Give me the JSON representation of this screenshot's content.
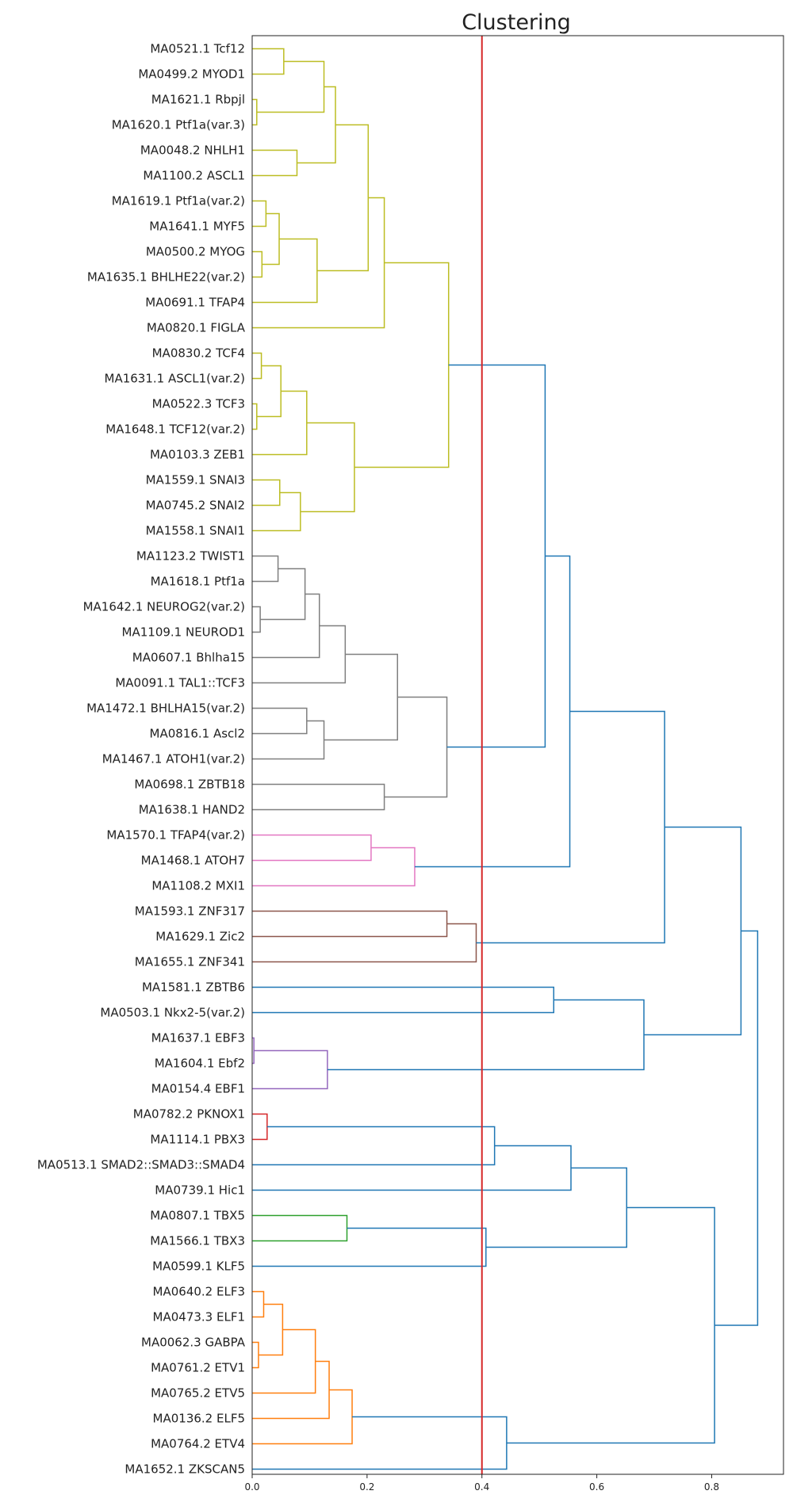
{
  "chart_data": {
    "type": "dendrogram",
    "title": "Clustering",
    "orientation": "left",
    "xlim": [
      0,
      0.925
    ],
    "xticks": [
      0.0,
      0.2,
      0.4,
      0.6,
      0.8
    ],
    "xtick_labels": [
      "0.0",
      "0.2",
      "0.4",
      "0.6",
      "0.8"
    ],
    "threshold": 0.4,
    "threshold_color": "#d62728",
    "leaves": [
      "MA0521.1 Tcf12",
      "MA0499.2 MYOD1",
      "MA1621.1 Rbpjl",
      "MA1620.1 Ptf1a(var.3)",
      "MA0048.2 NHLH1",
      "MA1100.2 ASCL1",
      "MA1619.1 Ptf1a(var.2)",
      "MA1641.1 MYF5",
      "MA0500.2 MYOG",
      "MA1635.1 BHLHE22(var.2)",
      "MA0691.1 TFAP4",
      "MA0820.1 FIGLA",
      "MA0830.2 TCF4",
      "MA1631.1 ASCL1(var.2)",
      "MA0522.3 TCF3",
      "MA1648.1 TCF12(var.2)",
      "MA0103.3 ZEB1",
      "MA1559.1 SNAI3",
      "MA0745.2 SNAI2",
      "MA1558.1 SNAI1",
      "MA1123.2 TWIST1",
      "MA1618.1 Ptf1a",
      "MA1642.1 NEUROG2(var.2)",
      "MA1109.1 NEUROD1",
      "MA0607.1 Bhlha15",
      "MA0091.1 TAL1::TCF3",
      "MA1472.1 BHLHA15(var.2)",
      "MA0816.1 Ascl2",
      "MA1467.1 ATOH1(var.2)",
      "MA0698.1 ZBTB18",
      "MA1638.1 HAND2",
      "MA1570.1 TFAP4(var.2)",
      "MA1468.1 ATOH7",
      "MA1108.2 MXI1",
      "MA1593.1 ZNF317",
      "MA1629.1 Zic2",
      "MA1655.1 ZNF341",
      "MA1581.1 ZBTB6",
      "MA0503.1 Nkx2-5(var.2)",
      "MA1637.1 EBF3",
      "MA1604.1 Ebf2",
      "MA0154.4 EBF1",
      "MA0782.2 PKNOX1",
      "MA1114.1 PBX3",
      "MA0513.1 SMAD2::SMAD3::SMAD4",
      "MA0739.1 Hic1",
      "MA0807.1 TBX5",
      "MA1566.1 TBX3",
      "MA0599.1 KLF5",
      "MA0640.2 ELF3",
      "MA0473.3 ELF1",
      "MA0062.3 GABPA",
      "MA0761.2 ETV1",
      "MA0765.2 ETV5",
      "MA0136.2 ELF5",
      "MA0764.2 ETV4",
      "MA1652.1 ZKSCAN5"
    ],
    "merges": [
      {
        "id": "n1",
        "a": "MA0521.1 Tcf12",
        "b": "MA0499.2 MYOD1",
        "h": 0.055,
        "color": "#bcbd22"
      },
      {
        "id": "n2",
        "a": "MA1621.1 Rbpjl",
        "b": "MA1620.1 Ptf1a(var.3)",
        "h": 0.008,
        "color": "#bcbd22"
      },
      {
        "id": "n3",
        "a": "n1",
        "b": "n2",
        "h": 0.125,
        "color": "#bcbd22"
      },
      {
        "id": "n4",
        "a": "MA0048.2 NHLH1",
        "b": "MA1100.2 ASCL1",
        "h": 0.078,
        "color": "#bcbd22"
      },
      {
        "id": "n5",
        "a": "n3",
        "b": "n4",
        "h": 0.145,
        "color": "#bcbd22"
      },
      {
        "id": "n6",
        "a": "MA1619.1 Ptf1a(var.2)",
        "b": "MA1641.1 MYF5",
        "h": 0.024,
        "color": "#bcbd22"
      },
      {
        "id": "n7",
        "a": "MA0500.2 MYOG",
        "b": "MA1635.1 BHLHE22(var.2)",
        "h": 0.017,
        "color": "#bcbd22"
      },
      {
        "id": "n8",
        "a": "n6",
        "b": "n7",
        "h": 0.047,
        "color": "#bcbd22"
      },
      {
        "id": "n9",
        "a": "n8",
        "b": "MA0691.1 TFAP4",
        "h": 0.113,
        "color": "#bcbd22"
      },
      {
        "id": "n10",
        "a": "n5",
        "b": "n9",
        "h": 0.202,
        "color": "#bcbd22"
      },
      {
        "id": "n11",
        "a": "n10",
        "b": "MA0820.1 FIGLA",
        "h": 0.23,
        "color": "#bcbd22"
      },
      {
        "id": "n12",
        "a": "MA0830.2 TCF4",
        "b": "MA1631.1 ASCL1(var.2)",
        "h": 0.016,
        "color": "#bcbd22"
      },
      {
        "id": "n13",
        "a": "MA0522.3 TCF3",
        "b": "MA1648.1 TCF12(var.2)",
        "h": 0.008,
        "color": "#bcbd22"
      },
      {
        "id": "n14",
        "a": "n12",
        "b": "n13",
        "h": 0.05,
        "color": "#bcbd22"
      },
      {
        "id": "n15",
        "a": "n14",
        "b": "MA0103.3 ZEB1",
        "h": 0.095,
        "color": "#bcbd22"
      },
      {
        "id": "n16",
        "a": "MA1559.1 SNAI3",
        "b": "MA0745.2 SNAI2",
        "h": 0.048,
        "color": "#bcbd22"
      },
      {
        "id": "n17",
        "a": "n16",
        "b": "MA1558.1 SNAI1",
        "h": 0.084,
        "color": "#bcbd22"
      },
      {
        "id": "n18",
        "a": "n15",
        "b": "n17",
        "h": 0.178,
        "color": "#bcbd22"
      },
      {
        "id": "n19",
        "a": "n11",
        "b": "n18",
        "h": 0.342,
        "color": "#bcbd22"
      },
      {
        "id": "n20",
        "a": "MA1123.2 TWIST1",
        "b": "MA1618.1 Ptf1a",
        "h": 0.045,
        "color": "#7f7f7f"
      },
      {
        "id": "n21",
        "a": "MA1642.1 NEUROG2(var.2)",
        "b": "MA1109.1 NEUROD1",
        "h": 0.014,
        "color": "#7f7f7f"
      },
      {
        "id": "n22",
        "a": "n20",
        "b": "n21",
        "h": 0.092,
        "color": "#7f7f7f"
      },
      {
        "id": "n23",
        "a": "n22",
        "b": "MA0607.1 Bhlha15",
        "h": 0.117,
        "color": "#7f7f7f"
      },
      {
        "id": "n24",
        "a": "n23",
        "b": "MA0091.1 TAL1::TCF3",
        "h": 0.162,
        "color": "#7f7f7f"
      },
      {
        "id": "n25",
        "a": "MA1472.1 BHLHA15(var.2)",
        "b": "MA0816.1 Ascl2",
        "h": 0.095,
        "color": "#7f7f7f"
      },
      {
        "id": "n26",
        "a": "n25",
        "b": "MA1467.1 ATOH1(var.2)",
        "h": 0.125,
        "color": "#7f7f7f"
      },
      {
        "id": "n27",
        "a": "n24",
        "b": "n26",
        "h": 0.253,
        "color": "#7f7f7f"
      },
      {
        "id": "n28",
        "a": "MA0698.1 ZBTB18",
        "b": "MA1638.1 HAND2",
        "h": 0.23,
        "color": "#7f7f7f"
      },
      {
        "id": "n29",
        "a": "n27",
        "b": "n28",
        "h": 0.339,
        "color": "#7f7f7f"
      },
      {
        "id": "n30",
        "a": "n19",
        "b": "n29",
        "h": 0.51,
        "color": "#1f77b4"
      },
      {
        "id": "n31",
        "a": "MA1570.1 TFAP4(var.2)",
        "b": "MA1468.1 ATOH7",
        "h": 0.207,
        "color": "#e377c2"
      },
      {
        "id": "n32",
        "a": "n31",
        "b": "MA1108.2 MXI1",
        "h": 0.283,
        "color": "#e377c2"
      },
      {
        "id": "n33",
        "a": "n30",
        "b": "n32",
        "h": 0.553,
        "color": "#1f77b4"
      },
      {
        "id": "n34",
        "a": "MA1593.1 ZNF317",
        "b": "MA1629.1 Zic2",
        "h": 0.339,
        "color": "#8c564b"
      },
      {
        "id": "n35",
        "a": "n34",
        "b": "MA1655.1 ZNF341",
        "h": 0.39,
        "color": "#8c564b"
      },
      {
        "id": "n36",
        "a": "n33",
        "b": "n35",
        "h": 0.718,
        "color": "#1f77b4"
      },
      {
        "id": "n37",
        "a": "MA1581.1 ZBTB6",
        "b": "MA0503.1 Nkx2-5(var.2)",
        "h": 0.525,
        "color": "#1f77b4"
      },
      {
        "id": "n38",
        "a": "MA1637.1 EBF3",
        "b": "MA1604.1 Ebf2",
        "h": 0.003,
        "color": "#9467bd"
      },
      {
        "id": "n39",
        "a": "n38",
        "b": "MA0154.4 EBF1",
        "h": 0.131,
        "color": "#9467bd"
      },
      {
        "id": "n40",
        "a": "n37",
        "b": "n39",
        "h": 0.682,
        "color": "#1f77b4"
      },
      {
        "id": "n41",
        "a": "n36",
        "b": "n40",
        "h": 0.851,
        "color": "#1f77b4"
      },
      {
        "id": "n42",
        "a": "MA0782.2 PKNOX1",
        "b": "MA1114.1 PBX3",
        "h": 0.026,
        "color": "#d62728"
      },
      {
        "id": "n43",
        "a": "n42",
        "b": "MA0513.1 SMAD2::SMAD3::SMAD4",
        "h": 0.422,
        "color": "#1f77b4"
      },
      {
        "id": "n44",
        "a": "n43",
        "b": "MA0739.1 Hic1",
        "h": 0.555,
        "color": "#1f77b4"
      },
      {
        "id": "n45",
        "a": "MA0807.1 TBX5",
        "b": "MA1566.1 TBX3",
        "h": 0.165,
        "color": "#2ca02c"
      },
      {
        "id": "n46",
        "a": "n45",
        "b": "MA0599.1 KLF5",
        "h": 0.407,
        "color": "#1f77b4"
      },
      {
        "id": "n47",
        "a": "n44",
        "b": "n46",
        "h": 0.652,
        "color": "#1f77b4"
      },
      {
        "id": "n48",
        "a": "MA0640.2 ELF3",
        "b": "MA0473.3 ELF1",
        "h": 0.02,
        "color": "#ff7f0e"
      },
      {
        "id": "n49",
        "a": "MA0062.3 GABPA",
        "b": "MA0761.2 ETV1",
        "h": 0.011,
        "color": "#ff7f0e"
      },
      {
        "id": "n50",
        "a": "n48",
        "b": "n49",
        "h": 0.053,
        "color": "#ff7f0e"
      },
      {
        "id": "n51",
        "a": "n50",
        "b": "MA0765.2 ETV5",
        "h": 0.11,
        "color": "#ff7f0e"
      },
      {
        "id": "n52",
        "a": "n51",
        "b": "MA0136.2 ELF5",
        "h": 0.134,
        "color": "#ff7f0e"
      },
      {
        "id": "n53",
        "a": "n52",
        "b": "MA0764.2 ETV4",
        "h": 0.174,
        "color": "#ff7f0e"
      },
      {
        "id": "n54",
        "a": "n53",
        "b": "MA1652.1 ZKSCAN5",
        "h": 0.443,
        "color": "#1f77b4"
      },
      {
        "id": "n55",
        "a": "n47",
        "b": "n54",
        "h": 0.805,
        "color": "#1f77b4"
      },
      {
        "id": "n56",
        "a": "n41",
        "b": "n55",
        "h": 0.88,
        "color": "#1f77b4"
      }
    ]
  }
}
